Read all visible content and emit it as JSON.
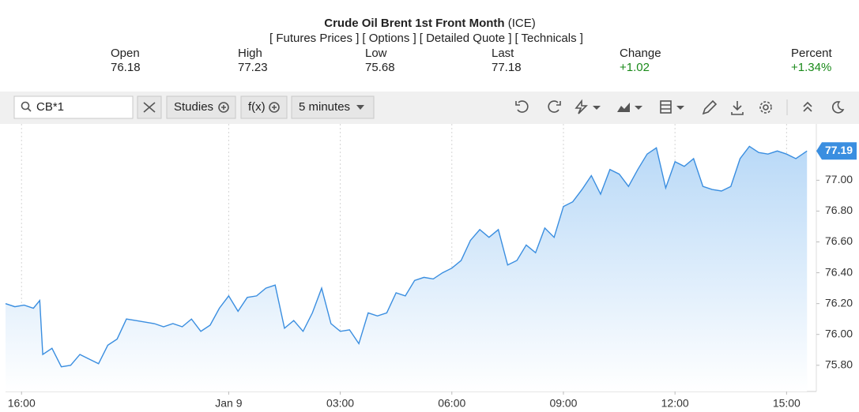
{
  "header": {
    "title": "Crude Oil Brent 1st Front Month",
    "exchange": "(ICE)",
    "links": [
      "[ Futures Prices ]",
      "[ Options ]",
      "[ Detailed Quote ]",
      "[ Technicals ]"
    ],
    "quote": [
      {
        "label": "Open",
        "value": 76.18
      },
      {
        "label": "High",
        "value": 77.23
      },
      {
        "label": "Low",
        "value": 75.68
      },
      {
        "label": "Last",
        "value": 77.18
      },
      {
        "label": "Change",
        "value": "+1.02"
      },
      {
        "label": "Percent",
        "value": "+1.34%"
      }
    ]
  },
  "toolbar": {
    "symbol": "CB*1",
    "studies": "Studies",
    "fx": "f(x)",
    "interval": "5 minutes"
  },
  "chart_data": {
    "type": "area",
    "color": "#3a8ee0",
    "grid": true,
    "x": [
      0,
      0.25,
      0.5,
      0.75,
      0.92,
      1,
      1.25,
      1.5,
      1.75,
      2,
      2.25,
      2.5,
      2.75,
      3,
      3.25,
      3.5,
      3.75,
      4,
      4.25,
      4.5,
      4.75,
      5,
      5.25,
      5.5,
      5.75,
      6,
      6.25,
      6.5,
      6.75,
      7,
      7.25,
      7.5,
      7.75,
      8,
      8.25,
      8.5,
      8.75,
      9,
      9.25,
      9.5,
      9.75,
      10,
      10.25,
      10.5,
      10.75,
      11,
      11.25,
      11.5,
      11.75,
      12,
      12.25,
      12.5,
      12.75,
      13,
      13.25,
      13.5,
      13.75,
      14,
      14.25,
      14.5,
      14.75,
      15,
      15.25,
      15.5,
      15.75,
      16,
      16.25,
      16.5,
      16.75,
      17,
      17.25,
      17.5,
      17.75,
      18,
      18.25,
      18.5,
      18.75,
      19,
      19.25,
      19.5,
      19.75,
      20,
      20.25,
      20.5,
      20.75,
      21,
      21.25,
      21.55
    ],
    "values": [
      76.2,
      76.18,
      76.19,
      76.17,
      76.22,
      75.87,
      75.91,
      75.79,
      75.8,
      75.87,
      75.84,
      75.81,
      75.93,
      75.97,
      76.1,
      76.09,
      76.08,
      76.07,
      76.05,
      76.07,
      76.05,
      76.1,
      76.02,
      76.06,
      76.17,
      76.25,
      76.15,
      76.24,
      76.25,
      76.3,
      76.32,
      76.04,
      76.09,
      76.02,
      76.14,
      76.3,
      76.07,
      76.02,
      76.03,
      75.94,
      76.14,
      76.12,
      76.14,
      76.27,
      76.25,
      76.35,
      76.37,
      76.36,
      76.4,
      76.43,
      76.48,
      76.61,
      76.68,
      76.63,
      76.68,
      76.45,
      76.48,
      76.58,
      76.53,
      76.69,
      76.63,
      76.83,
      76.86,
      76.94,
      77.03,
      76.91,
      77.07,
      77.04,
      76.96,
      77.07,
      77.17,
      77.21,
      76.95,
      77.12,
      77.09,
      77.14,
      76.96,
      76.94,
      76.93,
      76.96,
      77.14,
      77.22,
      77.18,
      77.17,
      77.19,
      77.17,
      77.14,
      77.19
    ],
    "xlim": [
      0,
      21.8
    ],
    "xticks": [
      {
        "value": 0.43,
        "label": "16:00"
      },
      {
        "value": 6,
        "label": "Jan 9"
      },
      {
        "value": 9,
        "label": "03:00"
      },
      {
        "value": 12,
        "label": "06:00"
      },
      {
        "value": 15,
        "label": "09:00"
      },
      {
        "value": 18,
        "label": "12:00"
      },
      {
        "value": 21,
        "label": "15:00"
      }
    ],
    "ylim": [
      75.63,
      77.35
    ],
    "yticks": [
      {
        "value": 75.8,
        "label": "75.80"
      },
      {
        "value": 76,
        "label": "76.00"
      },
      {
        "value": 76.2,
        "label": "76.20"
      },
      {
        "value": 76.4,
        "label": "76.40"
      },
      {
        "value": 76.6,
        "label": "76.60"
      },
      {
        "value": 76.8,
        "label": "76.80"
      },
      {
        "value": 77,
        "label": "77.00"
      }
    ],
    "current": {
      "value": 77.19,
      "label": "77.19"
    }
  }
}
